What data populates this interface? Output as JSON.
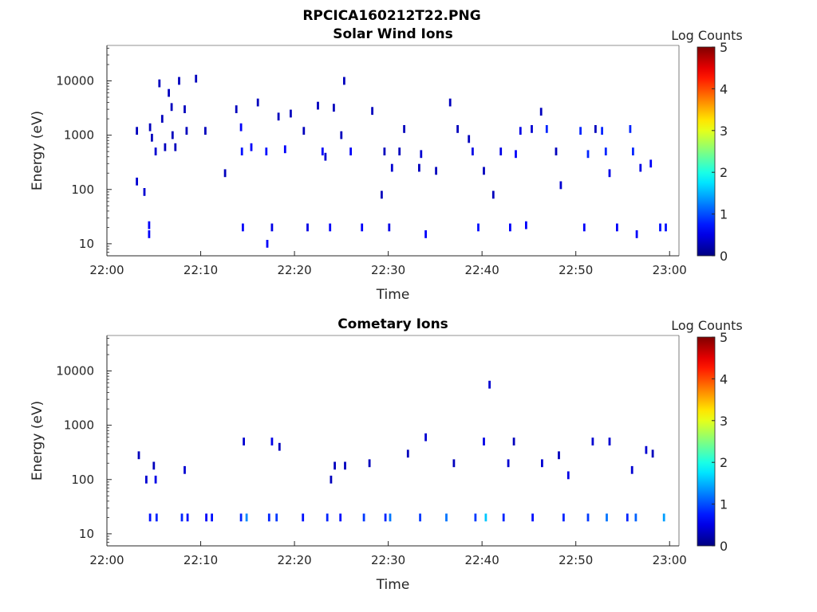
{
  "figure": {
    "title": "RPCICA160212T22.PNG"
  },
  "chart_data": [
    {
      "type": "heatmap",
      "title": "Solar Wind Ions",
      "xlabel": "Time",
      "ylabel": "Energy (eV)",
      "x_ticks": [
        "22:00",
        "22:10",
        "22:20",
        "22:30",
        "22:40",
        "22:50",
        "23:00"
      ],
      "y_ticks": [
        "10",
        "100",
        "1000",
        "10000"
      ],
      "x_range": [
        "22:00",
        "23:01"
      ],
      "y_range": [
        6,
        45000
      ],
      "y_scale": "log",
      "colorbar": {
        "label": "Log Counts",
        "range": [
          0,
          5
        ],
        "ticks": [
          "0",
          "1",
          "2",
          "3",
          "4",
          "5"
        ],
        "colormap": "jet"
      },
      "cells": [
        [
          3.2,
          140,
          0.4
        ],
        [
          3.2,
          1200,
          0.3
        ],
        [
          4.0,
          90,
          0.4
        ],
        [
          4.5,
          22,
          0.6
        ],
        [
          4.5,
          15,
          0.6
        ],
        [
          4.6,
          1400,
          0.3
        ],
        [
          4.8,
          900,
          0.3
        ],
        [
          5.2,
          500,
          0.4
        ],
        [
          5.6,
          9000,
          0.3
        ],
        [
          5.9,
          2000,
          0.3
        ],
        [
          6.2,
          600,
          0.3
        ],
        [
          6.6,
          6000,
          0.3
        ],
        [
          6.9,
          3300,
          0.3
        ],
        [
          7.0,
          1000,
          0.3
        ],
        [
          7.3,
          600,
          0.3
        ],
        [
          7.7,
          10000,
          0.3
        ],
        [
          8.3,
          3000,
          0.3
        ],
        [
          8.5,
          1200,
          0.3
        ],
        [
          9.5,
          11000,
          0.3
        ],
        [
          10.5,
          1200,
          0.3
        ],
        [
          12.6,
          200,
          0.3
        ],
        [
          13.8,
          3000,
          0.3
        ],
        [
          14.3,
          1400,
          0.6
        ],
        [
          14.4,
          500,
          0.7
        ],
        [
          14.5,
          20,
          0.6
        ],
        [
          15.4,
          600,
          0.6
        ],
        [
          16.1,
          4000,
          0.3
        ],
        [
          17.0,
          500,
          0.7
        ],
        [
          17.1,
          10,
          0.6
        ],
        [
          17.6,
          20,
          0.5
        ],
        [
          18.3,
          2200,
          0.3
        ],
        [
          19.0,
          550,
          0.6
        ],
        [
          19.6,
          2500,
          0.3
        ],
        [
          21.0,
          1200,
          0.3
        ],
        [
          21.4,
          20,
          0.5
        ],
        [
          22.5,
          3500,
          0.3
        ],
        [
          23.0,
          500,
          0.6
        ],
        [
          23.3,
          400,
          0.4
        ],
        [
          23.8,
          20,
          0.6
        ],
        [
          24.2,
          3200,
          0.3
        ],
        [
          25.0,
          1000,
          0.3
        ],
        [
          25.3,
          10000,
          0.3
        ],
        [
          26.0,
          500,
          0.6
        ],
        [
          27.2,
          20,
          0.6
        ],
        [
          28.3,
          2800,
          0.3
        ],
        [
          29.3,
          80,
          0.3
        ],
        [
          29.6,
          500,
          0.3
        ],
        [
          30.1,
          20,
          0.5
        ],
        [
          30.4,
          250,
          0.4
        ],
        [
          31.2,
          500,
          0.3
        ],
        [
          31.7,
          1300,
          0.3
        ],
        [
          33.3,
          250,
          0.3
        ],
        [
          33.5,
          450,
          0.4
        ],
        [
          34.0,
          15,
          0.6
        ],
        [
          35.1,
          220,
          0.3
        ],
        [
          36.6,
          4000,
          0.3
        ],
        [
          37.4,
          1300,
          0.3
        ],
        [
          38.6,
          850,
          0.3
        ],
        [
          39.0,
          500,
          0.5
        ],
        [
          39.6,
          20,
          0.7
        ],
        [
          40.2,
          220,
          0.3
        ],
        [
          41.2,
          80,
          0.3
        ],
        [
          42.0,
          500,
          0.5
        ],
        [
          43.0,
          20,
          0.6
        ],
        [
          43.6,
          450,
          0.6
        ],
        [
          44.1,
          1200,
          0.5
        ],
        [
          44.7,
          22,
          0.6
        ],
        [
          45.3,
          1300,
          0.4
        ],
        [
          46.3,
          2700,
          0.3
        ],
        [
          46.9,
          1300,
          0.8
        ],
        [
          47.9,
          500,
          0.3
        ],
        [
          48.4,
          120,
          0.4
        ],
        [
          50.5,
          1200,
          0.8
        ],
        [
          50.9,
          20,
          0.6
        ],
        [
          51.3,
          450,
          0.8
        ],
        [
          52.1,
          1300,
          0.3
        ],
        [
          52.8,
          1200,
          0.8
        ],
        [
          53.2,
          500,
          0.8
        ],
        [
          53.6,
          200,
          0.5
        ],
        [
          54.4,
          20,
          0.6
        ],
        [
          55.8,
          1300,
          0.8
        ],
        [
          56.1,
          500,
          0.8
        ],
        [
          56.5,
          15,
          0.6
        ],
        [
          56.9,
          250,
          0.5
        ],
        [
          58.0,
          300,
          0.6
        ],
        [
          59.0,
          20,
          0.7
        ],
        [
          59.6,
          20,
          0.7
        ]
      ]
    },
    {
      "type": "heatmap",
      "title": "Cometary Ions",
      "xlabel": "Time",
      "ylabel": "Energy (eV)",
      "x_ticks": [
        "22:00",
        "22:10",
        "22:20",
        "22:30",
        "22:40",
        "22:50",
        "23:00"
      ],
      "y_ticks": [
        "10",
        "100",
        "1000",
        "10000"
      ],
      "x_range": [
        "22:00",
        "23:01"
      ],
      "y_range": [
        6,
        45000
      ],
      "y_scale": "log",
      "colorbar": {
        "label": "Log Counts",
        "range": [
          0,
          5
        ],
        "ticks": [
          "0",
          "1",
          "2",
          "3",
          "4",
          "5"
        ],
        "colormap": "jet"
      },
      "cells": [
        [
          3.4,
          280,
          0.3
        ],
        [
          4.2,
          100,
          0.4
        ],
        [
          4.6,
          20,
          0.7
        ],
        [
          5.0,
          180,
          0.3
        ],
        [
          5.2,
          100,
          0.5
        ],
        [
          5.3,
          20,
          0.8
        ],
        [
          8.0,
          20,
          0.8
        ],
        [
          8.3,
          150,
          0.4
        ],
        [
          8.6,
          20,
          0.7
        ],
        [
          10.6,
          20,
          0.6
        ],
        [
          11.2,
          20,
          0.7
        ],
        [
          14.3,
          20,
          0.8
        ],
        [
          14.6,
          500,
          0.4
        ],
        [
          14.9,
          20,
          1.3
        ],
        [
          17.3,
          20,
          0.8
        ],
        [
          17.6,
          500,
          0.5
        ],
        [
          18.1,
          20,
          0.9
        ],
        [
          18.4,
          400,
          0.3
        ],
        [
          20.9,
          20,
          0.7
        ],
        [
          23.5,
          20,
          0.8
        ],
        [
          23.9,
          100,
          0.3
        ],
        [
          24.3,
          180,
          0.3
        ],
        [
          24.9,
          20,
          0.7
        ],
        [
          25.4,
          180,
          0.3
        ],
        [
          27.4,
          20,
          0.9
        ],
        [
          28.0,
          200,
          0.3
        ],
        [
          29.7,
          20,
          0.8
        ],
        [
          30.2,
          20,
          1.2
        ],
        [
          32.1,
          300,
          0.3
        ],
        [
          33.4,
          20,
          0.9
        ],
        [
          34.0,
          600,
          0.4
        ],
        [
          36.2,
          20,
          1.2
        ],
        [
          37.0,
          200,
          0.3
        ],
        [
          39.3,
          20,
          0.9
        ],
        [
          40.2,
          500,
          0.5
        ],
        [
          40.4,
          20,
          1.6
        ],
        [
          40.8,
          5600,
          0.4
        ],
        [
          42.3,
          20,
          0.8
        ],
        [
          42.8,
          200,
          0.4
        ],
        [
          43.4,
          500,
          0.3
        ],
        [
          45.4,
          20,
          0.7
        ],
        [
          46.4,
          200,
          0.4
        ],
        [
          48.2,
          280,
          0.3
        ],
        [
          48.7,
          20,
          0.8
        ],
        [
          49.2,
          120,
          0.5
        ],
        [
          51.3,
          20,
          0.9
        ],
        [
          51.8,
          500,
          0.4
        ],
        [
          53.3,
          20,
          1.2
        ],
        [
          53.6,
          500,
          0.4
        ],
        [
          55.5,
          20,
          0.8
        ],
        [
          56.0,
          150,
          0.4
        ],
        [
          56.4,
          20,
          1.1
        ],
        [
          57.5,
          350,
          0.4
        ],
        [
          58.2,
          300,
          0.3
        ],
        [
          59.4,
          20,
          1.4
        ]
      ]
    }
  ]
}
